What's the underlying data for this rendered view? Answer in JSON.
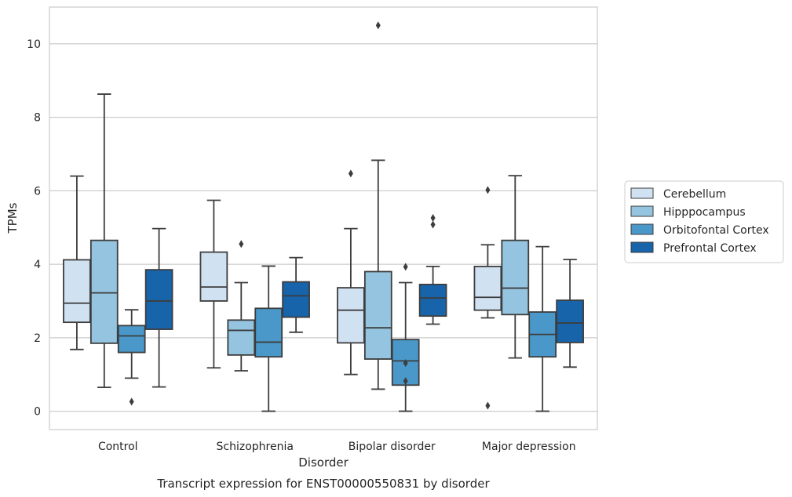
{
  "chart_data": {
    "type": "boxplot",
    "title": "",
    "caption": "Transcript expression for ENST00000550831 by disorder",
    "xlabel": "Disorder",
    "ylabel": "TPMs",
    "ylim": [
      -0.5,
      11
    ],
    "yticks": [
      0,
      2,
      4,
      6,
      8,
      10
    ],
    "grid": "horizontal",
    "legend_position": "right",
    "categories": [
      "Control",
      "Schizophrenia",
      "Bipolar disorder",
      "Major depression"
    ],
    "series": [
      {
        "name": "Cerebellum",
        "color": "#d0e1f2",
        "boxes": [
          {
            "whislo": 1.68,
            "q1": 2.42,
            "med": 2.94,
            "q3": 4.12,
            "whishi": 6.4,
            "fliers": []
          },
          {
            "whislo": 1.18,
            "q1": 3.0,
            "med": 3.38,
            "q3": 4.33,
            "whishi": 5.74,
            "fliers": []
          },
          {
            "whislo": 1.0,
            "q1": 1.86,
            "med": 2.75,
            "q3": 3.36,
            "whishi": 4.97,
            "fliers": [
              6.47
            ]
          },
          {
            "whislo": 2.54,
            "q1": 2.75,
            "med": 3.1,
            "q3": 3.94,
            "whishi": 4.53,
            "fliers": [
              6.02,
              0.15
            ]
          }
        ]
      },
      {
        "name": "Hipppocampus",
        "color": "#94c4df",
        "boxes": [
          {
            "whislo": 0.65,
            "q1": 1.85,
            "med": 3.22,
            "q3": 4.65,
            "whishi": 8.63,
            "fliers": []
          },
          {
            "whislo": 1.1,
            "q1": 1.53,
            "med": 2.2,
            "q3": 2.48,
            "whishi": 3.5,
            "fliers": [
              4.55
            ]
          },
          {
            "whislo": 0.6,
            "q1": 1.42,
            "med": 2.27,
            "q3": 3.8,
            "whishi": 6.83,
            "fliers": [
              10.5
            ]
          },
          {
            "whislo": 1.45,
            "q1": 2.63,
            "med": 3.35,
            "q3": 4.65,
            "whishi": 6.41,
            "fliers": []
          }
        ]
      },
      {
        "name": "Orbitofontal Cortex",
        "color": "#4a98c9",
        "boxes": [
          {
            "whislo": 0.9,
            "q1": 1.6,
            "med": 2.05,
            "q3": 2.33,
            "whishi": 2.76,
            "fliers": [
              0.26
            ]
          },
          {
            "whislo": 0.0,
            "q1": 1.48,
            "med": 1.88,
            "q3": 2.8,
            "whishi": 3.95,
            "fliers": []
          },
          {
            "whislo": 0.0,
            "q1": 0.71,
            "med": 1.37,
            "q3": 1.95,
            "whishi": 3.5,
            "fliers": [
              3.93,
              1.31,
              0.82
            ]
          },
          {
            "whislo": 0.0,
            "q1": 1.48,
            "med": 2.09,
            "q3": 2.7,
            "whishi": 4.48,
            "fliers": []
          }
        ]
      },
      {
        "name": "Prefrontal Cortex",
        "color": "#1764ab",
        "boxes": [
          {
            "whislo": 0.66,
            "q1": 2.23,
            "med": 3.0,
            "q3": 3.85,
            "whishi": 4.97,
            "fliers": []
          },
          {
            "whislo": 2.15,
            "q1": 2.56,
            "med": 3.14,
            "q3": 3.52,
            "whishi": 4.18,
            "fliers": []
          },
          {
            "whislo": 2.37,
            "q1": 2.59,
            "med": 3.08,
            "q3": 3.45,
            "whishi": 3.94,
            "fliers": [
              5.26,
              5.08
            ]
          },
          {
            "whislo": 1.2,
            "q1": 1.87,
            "med": 2.4,
            "q3": 3.02,
            "whishi": 4.13,
            "fliers": []
          }
        ]
      }
    ]
  }
}
